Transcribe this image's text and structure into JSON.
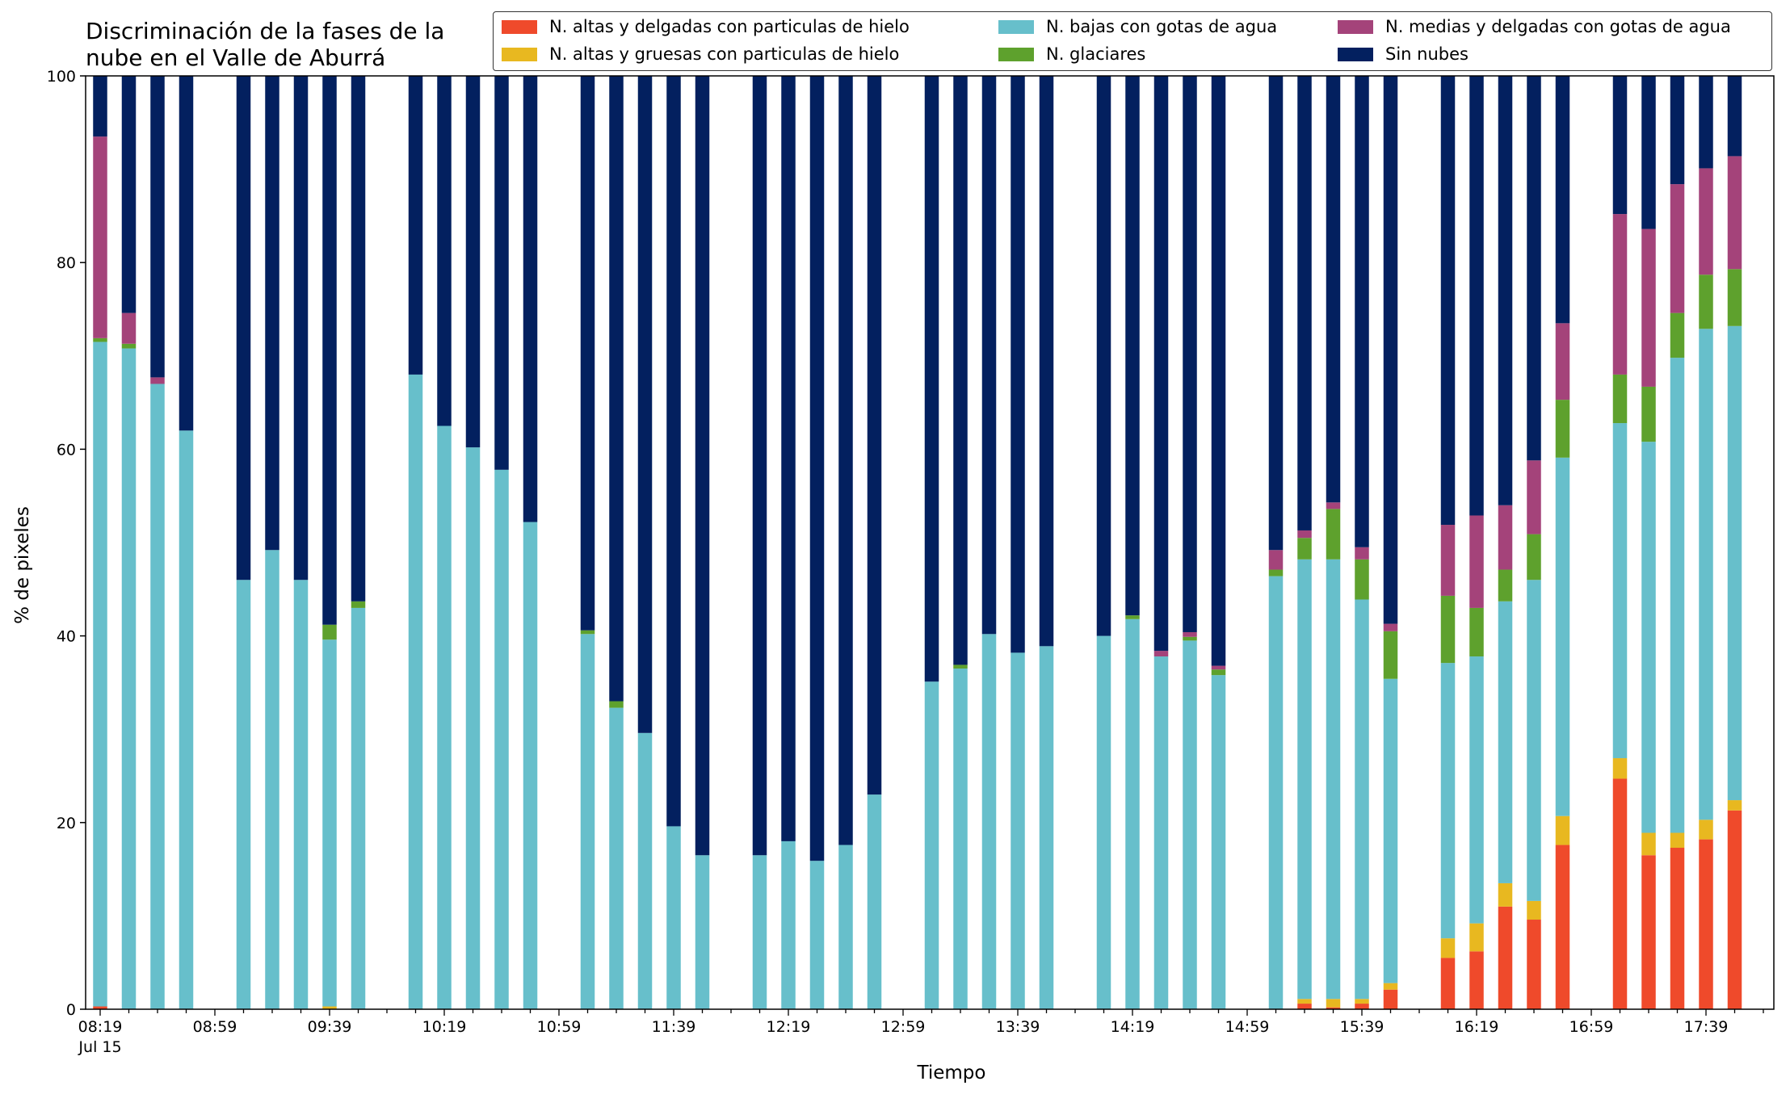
{
  "chart_data": {
    "type": "bar",
    "stacked": true,
    "title": "Discriminación de la fases de la\nnube en el Valle de Aburrá",
    "xlabel": "Tiempo",
    "ylabel": "% de pixeles",
    "ylim": [
      0,
      100
    ],
    "yticks": [
      "0",
      "20",
      "40",
      "60",
      "80",
      "100"
    ],
    "date_label": "Jul 15",
    "xtick_labels": [
      "08:19",
      "08:59",
      "09:39",
      "10:19",
      "10:59",
      "11:39",
      "12:19",
      "12:59",
      "13:39",
      "14:19",
      "14:59",
      "15:39",
      "16:19",
      "16:59",
      "17:39"
    ],
    "legend_position": "top-right",
    "grid": false,
    "series": [
      {
        "name": "N. altas y delgadas con particulas de hielo",
        "color": "#ef4a2b"
      },
      {
        "name": "N. altas y gruesas con particulas de hielo",
        "color": "#e8b820"
      },
      {
        "name": "N. bajas con gotas de agua",
        "color": "#67bfcb"
      },
      {
        "name": "N. glaciares",
        "color": "#5ea12d"
      },
      {
        "name": "N. medias y delgadas con gotas de agua",
        "color": "#a4437a"
      },
      {
        "name": "Sin nubes",
        "color": "#03205f"
      }
    ],
    "legend_order": [
      0,
      2,
      4,
      1,
      3,
      5
    ],
    "slots_per_tick": 4,
    "bars": [
      {
        "slot": 0,
        "values": [
          0.3,
          0,
          71.2,
          0.4,
          21.6,
          6.5
        ]
      },
      {
        "slot": 1,
        "values": [
          0,
          0,
          70.8,
          0.5,
          3.3,
          25.4
        ]
      },
      {
        "slot": 2,
        "values": [
          0,
          0,
          67,
          0,
          0.7,
          32.3
        ]
      },
      {
        "slot": 3,
        "values": [
          0,
          0,
          62,
          0,
          0,
          38
        ]
      },
      {
        "slot": 5,
        "values": [
          0,
          0,
          46,
          0,
          0,
          54
        ]
      },
      {
        "slot": 6,
        "values": [
          0,
          0,
          49.2,
          0,
          0,
          50.8
        ]
      },
      {
        "slot": 7,
        "values": [
          0,
          0,
          46,
          0,
          0,
          54
        ]
      },
      {
        "slot": 8,
        "values": [
          0,
          0.3,
          39.3,
          1.6,
          0,
          58.8
        ]
      },
      {
        "slot": 9,
        "values": [
          0,
          0,
          43,
          0.7,
          0,
          56.3
        ]
      },
      {
        "slot": 11,
        "values": [
          0,
          0,
          68,
          0,
          0,
          32
        ]
      },
      {
        "slot": 12,
        "values": [
          0,
          0,
          62.5,
          0,
          0,
          37.5
        ]
      },
      {
        "slot": 13,
        "values": [
          0,
          0,
          60.2,
          0,
          0,
          39.8
        ]
      },
      {
        "slot": 14,
        "values": [
          0,
          0,
          57.8,
          0,
          0,
          42.2
        ]
      },
      {
        "slot": 15,
        "values": [
          0,
          0,
          52.2,
          0,
          0,
          47.8
        ]
      },
      {
        "slot": 17,
        "values": [
          0,
          0,
          40.2,
          0.4,
          0,
          59.4
        ]
      },
      {
        "slot": 18,
        "values": [
          0,
          0,
          32.3,
          0.7,
          0,
          67
        ]
      },
      {
        "slot": 19,
        "values": [
          0,
          0,
          29.6,
          0,
          0,
          70.4
        ]
      },
      {
        "slot": 20,
        "values": [
          0,
          0,
          19.6,
          0,
          0,
          80.4
        ]
      },
      {
        "slot": 21,
        "values": [
          0,
          0,
          16.5,
          0,
          0,
          83.5
        ]
      },
      {
        "slot": 23,
        "values": [
          0,
          0,
          16.5,
          0,
          0,
          83.5
        ]
      },
      {
        "slot": 24,
        "values": [
          0,
          0,
          18,
          0,
          0,
          82
        ]
      },
      {
        "slot": 25,
        "values": [
          0,
          0,
          15.9,
          0,
          0,
          84.1
        ]
      },
      {
        "slot": 26,
        "values": [
          0,
          0,
          17.6,
          0,
          0,
          82.4
        ]
      },
      {
        "slot": 27,
        "values": [
          0,
          0,
          23,
          0,
          0,
          77
        ]
      },
      {
        "slot": 29,
        "values": [
          0,
          0,
          35.1,
          0,
          0,
          64.9
        ]
      },
      {
        "slot": 30,
        "values": [
          0,
          0,
          36.5,
          0.4,
          0,
          63.1
        ]
      },
      {
        "slot": 31,
        "values": [
          0,
          0,
          40.2,
          0,
          0,
          59.8
        ]
      },
      {
        "slot": 32,
        "values": [
          0,
          0,
          38.2,
          0,
          0,
          61.8
        ]
      },
      {
        "slot": 33,
        "values": [
          0,
          0,
          38.9,
          0,
          0,
          61.1
        ]
      },
      {
        "slot": 35,
        "values": [
          0,
          0,
          40,
          0,
          0,
          60
        ]
      },
      {
        "slot": 36,
        "values": [
          0,
          0,
          41.8,
          0.4,
          0,
          57.8
        ]
      },
      {
        "slot": 37,
        "values": [
          0,
          0,
          37.8,
          0,
          0.6,
          61.6
        ]
      },
      {
        "slot": 38,
        "values": [
          0,
          0,
          39.5,
          0.4,
          0.5,
          59.6
        ]
      },
      {
        "slot": 39,
        "values": [
          0,
          0,
          35.8,
          0.6,
          0.4,
          63.2
        ]
      },
      {
        "slot": 41,
        "values": [
          0,
          0,
          46.4,
          0.7,
          2.1,
          50.8
        ]
      },
      {
        "slot": 42,
        "values": [
          0.6,
          0.5,
          47.1,
          2.3,
          0.8,
          48.7
        ]
      },
      {
        "slot": 43,
        "values": [
          0.2,
          0.9,
          47.1,
          5.4,
          0.7,
          45.7
        ]
      },
      {
        "slot": 44,
        "values": [
          0.6,
          0.5,
          42.8,
          4.3,
          1.3,
          50.5
        ]
      },
      {
        "slot": 45,
        "values": [
          2.1,
          0.7,
          32.6,
          5.1,
          0.8,
          58.7
        ]
      },
      {
        "slot": 47,
        "values": [
          5.5,
          2.1,
          29.5,
          7.2,
          7.6,
          48.1
        ]
      },
      {
        "slot": 48,
        "values": [
          6.2,
          3,
          28.6,
          5.2,
          9.9,
          47.1
        ]
      },
      {
        "slot": 49,
        "values": [
          11,
          2.5,
          30.2,
          3.4,
          6.9,
          46
        ]
      },
      {
        "slot": 50,
        "values": [
          9.6,
          2,
          34.4,
          4.9,
          7.9,
          41.2
        ]
      },
      {
        "slot": 51,
        "values": [
          17.6,
          3.1,
          38.4,
          6.2,
          8.2,
          26.5
        ]
      },
      {
        "slot": 53,
        "values": [
          24.7,
          2.2,
          35.9,
          5.2,
          17.2,
          14.8
        ]
      },
      {
        "slot": 54,
        "values": [
          16.5,
          2.4,
          41.9,
          5.9,
          16.9,
          16.4
        ]
      },
      {
        "slot": 55,
        "values": [
          17.3,
          1.6,
          50.9,
          4.8,
          13.8,
          11.6
        ]
      },
      {
        "slot": 56,
        "values": [
          18.2,
          2.1,
          52.6,
          5.8,
          11.4,
          9.9
        ]
      },
      {
        "slot": 57,
        "values": [
          21.3,
          1.1,
          50.8,
          6.1,
          12.1,
          8.6
        ]
      }
    ]
  }
}
